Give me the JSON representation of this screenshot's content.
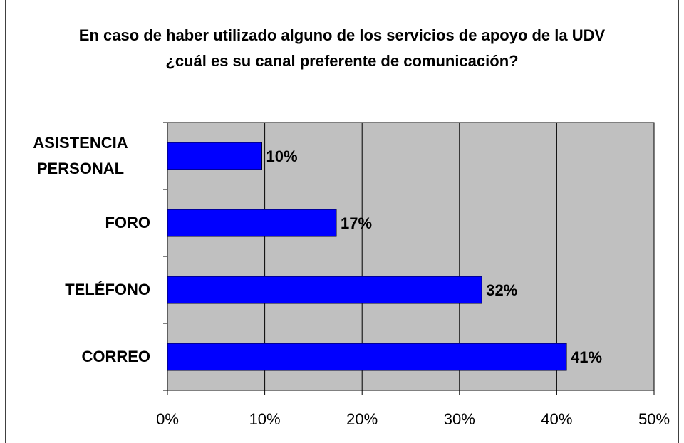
{
  "chart_data": {
    "type": "bar",
    "orientation": "horizontal",
    "title": "En caso de haber utilizado alguno de los servicios de apoyo de la UDV ¿cuál es su canal preferente de comunicación?",
    "categories": [
      "ASISTENCIA PERSONAL",
      "FORO",
      "TELÉFONO",
      "CORREO"
    ],
    "values": [
      9.7,
      17.35,
      32.3,
      41.0
    ],
    "value_labels": [
      "10%",
      "17%",
      "32%",
      "41%"
    ],
    "color": "#0000ff",
    "xlim": [
      0,
      50
    ],
    "xticks": [
      {
        "value": 0,
        "label": "0%"
      },
      {
        "value": 10,
        "label": "10%"
      },
      {
        "value": 20,
        "label": "20%"
      },
      {
        "value": 30,
        "label": "30%"
      },
      {
        "value": 40,
        "label": "40%"
      },
      {
        "value": 50,
        "label": "50%"
      }
    ],
    "grid": true
  }
}
